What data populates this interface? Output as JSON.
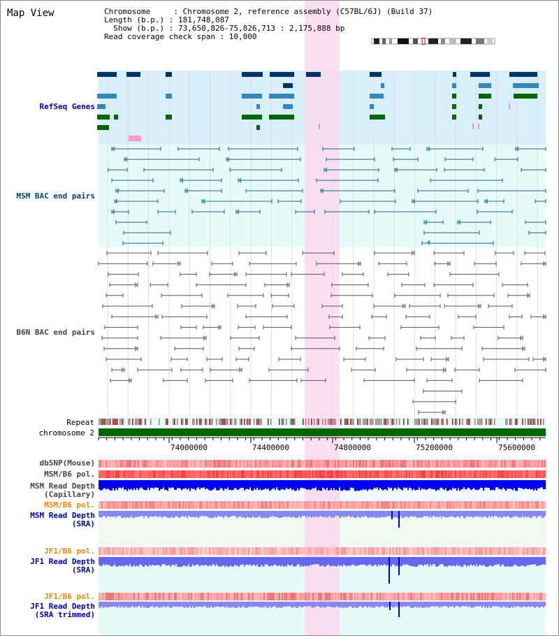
{
  "header": {
    "title": "Map View",
    "info_lines": [
      "Chromosome     : Chromosome 2, reference assembly (C57BL/6J) (Build 37)",
      "Length (b.p.) : 181,748,087",
      "  Show (b.p.) : 73,650,826-75,826,713 : 2,175,888 bp",
      "Read coverage check span : 10,000"
    ]
  },
  "tracks": {
    "refseq": "RefSeq Genes",
    "msm_bac": "MSM BAC end pairs",
    "b6n_bac": "B6N BAC end pairs",
    "repeat": "Repeat",
    "chromosome": "chromosome 2",
    "dbsnp": "dbSNP(Mouse)",
    "msm_b6_pol_1": "MSM/B6 pol.",
    "msm_read_depth_cap": "MSM Read Depth\n(Capillary)",
    "msm_b6_pol_2": "MSM/B6 pol.",
    "msm_read_depth_sra": "MSM Read Depth\n(SRA)",
    "jf1_b6_pol_1": "JF1/B6 pol.",
    "jf1_read_depth_sra": "JF1 Read Depth\n(SRA)",
    "jf1_b6_pol_2": "JF1/B6 pol.",
    "jf1_read_depth_trim": "JF1 Read Depth\n(SRA trimmed)"
  },
  "axis": {
    "ticks": [
      "74000000",
      "74400000",
      "74800000",
      "75200000",
      "75600000"
    ]
  },
  "colors": {
    "highlight": "#f9d8f0",
    "refseq_bg": "#d8eef8",
    "msm_bg": "#e6fafa",
    "chrom": "#006600",
    "label_blue": "#0000aa",
    "label_teal": "#004466",
    "label_orange": "#ee8800"
  }
}
